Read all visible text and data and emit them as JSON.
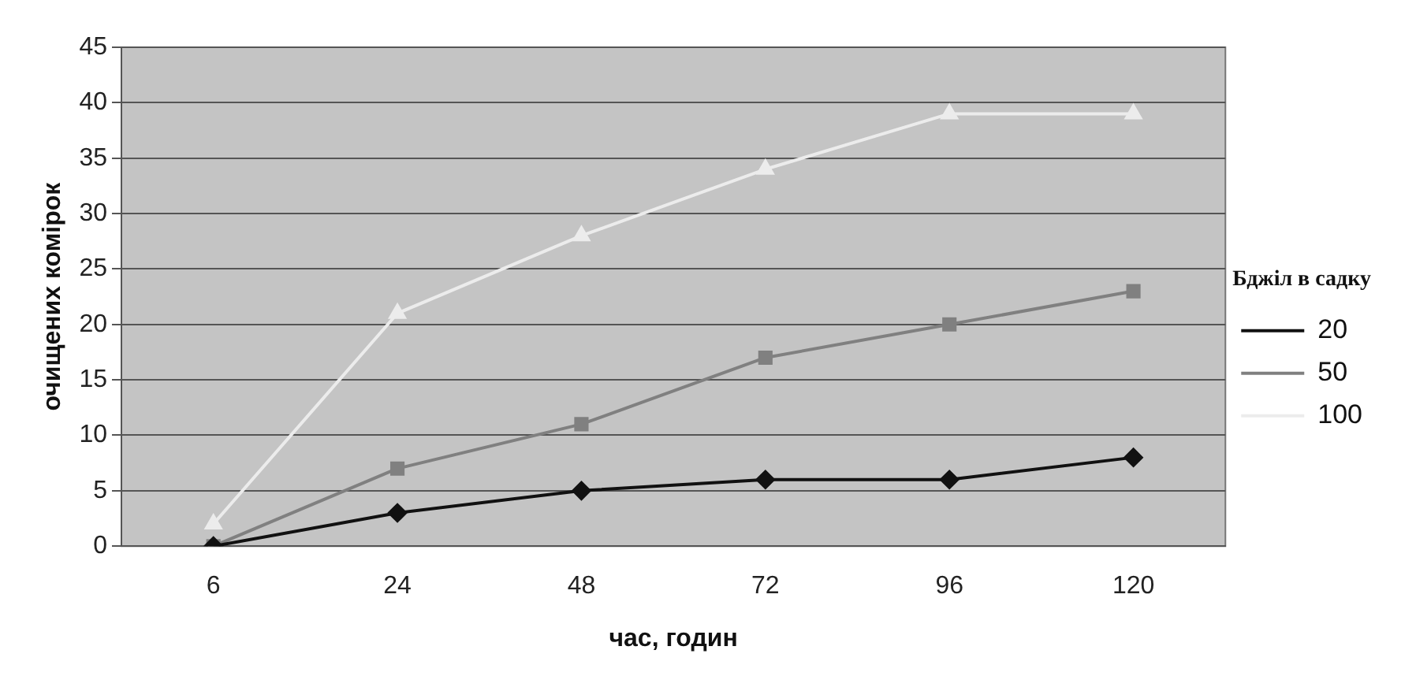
{
  "chart_data": {
    "type": "line",
    "xlabel": "час, годин",
    "ylabel": "очищених комірок",
    "legend_title": "Бджіл в садку",
    "categories": [
      "6",
      "24",
      "48",
      "72",
      "96",
      "120"
    ],
    "series": [
      {
        "name": "20",
        "color": "#111111",
        "marker": "diamond",
        "values": [
          0,
          3,
          5,
          6,
          6,
          8
        ]
      },
      {
        "name": "50",
        "color": "#808080",
        "marker": "square",
        "values": [
          0,
          7,
          11,
          17,
          20,
          23
        ]
      },
      {
        "name": "100",
        "color": "#ececec",
        "marker": "triangle",
        "values": [
          2,
          21,
          28,
          34,
          39,
          39
        ]
      }
    ],
    "ylim": [
      0,
      45
    ],
    "yticks": [
      0,
      5,
      10,
      15,
      20,
      25,
      30,
      35,
      40,
      45
    ],
    "grid": "y",
    "legend": "right",
    "line_style": "solid"
  }
}
